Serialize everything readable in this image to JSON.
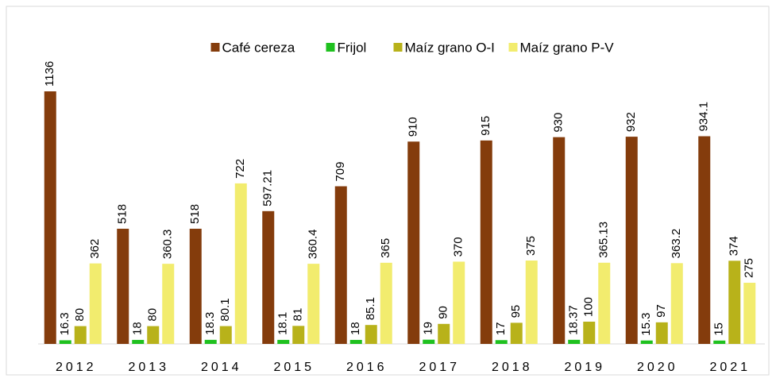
{
  "chart_data": {
    "type": "bar",
    "categories": [
      "2012",
      "2013",
      "2014",
      "2015",
      "2016",
      "2017",
      "2018",
      "2019",
      "2020",
      "2021"
    ],
    "series": [
      {
        "name": "Café cereza",
        "color": "#843c0c",
        "values": [
          1136,
          518,
          518,
          597.21,
          709,
          910,
          915,
          930,
          932,
          934.1
        ]
      },
      {
        "name": "Frijol",
        "color": "#1fc11f",
        "values": [
          16.3,
          18,
          18.3,
          18.1,
          18,
          19,
          17,
          18.37,
          15.3,
          15
        ]
      },
      {
        "name": "Maíz grano O-I",
        "color": "#b8b21a",
        "values": [
          80,
          80,
          80.1,
          81,
          85.1,
          90,
          95,
          100,
          97,
          374
        ]
      },
      {
        "name": "Maíz grano P-V",
        "color": "#f2ec6e",
        "values": [
          362,
          360.3,
          722,
          360.4,
          365,
          370,
          375,
          365.13,
          363.2,
          275
        ]
      }
    ],
    "legend": "top"
  }
}
